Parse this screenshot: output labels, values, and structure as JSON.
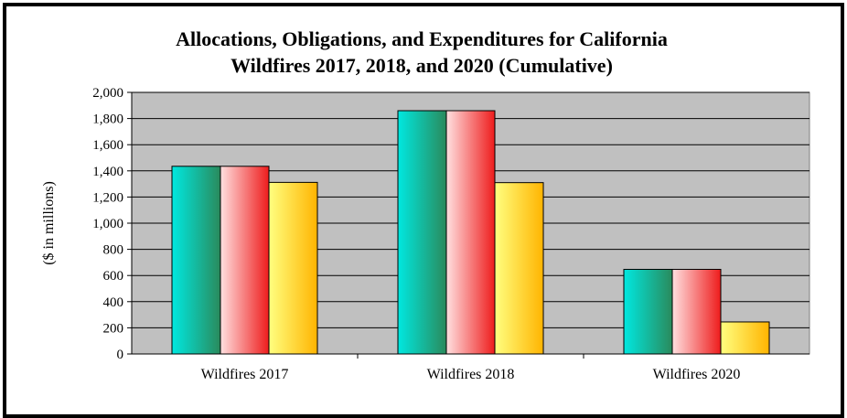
{
  "chart_data": {
    "type": "bar",
    "title_lines": [
      "Allocations, Obligations, and Expenditures for California",
      "Wildfires 2017, 2018, and 2020 (Cumulative)"
    ],
    "xlabel": "",
    "ylabel": "($ in millions)",
    "ylim": [
      0,
      2000
    ],
    "y_ticks": [
      "0",
      "200",
      "400",
      "600",
      "800",
      "1,000",
      "1,200",
      "1,400",
      "1,600",
      "1,800",
      "2,000"
    ],
    "y_tick_values": [
      0,
      200,
      400,
      600,
      800,
      1000,
      1200,
      1400,
      1600,
      1800,
      2000
    ],
    "categories": [
      "Wildfires 2017",
      "Wildfires 2018",
      "Wildfires 2020"
    ],
    "series": [
      {
        "values": [
          1435,
          1860,
          647
        ],
        "colors": [
          "#00e8e0",
          "#2a8a5c"
        ]
      },
      {
        "values": [
          1435,
          1860,
          647
        ],
        "colors": [
          "#ffe0e0",
          "#ee1c1c"
        ]
      },
      {
        "values": [
          1312,
          1310,
          245
        ],
        "colors": [
          "#ffff80",
          "#ffb400"
        ]
      }
    ],
    "grid": true,
    "plot_background": "#c0c0c0",
    "legend": "none"
  }
}
